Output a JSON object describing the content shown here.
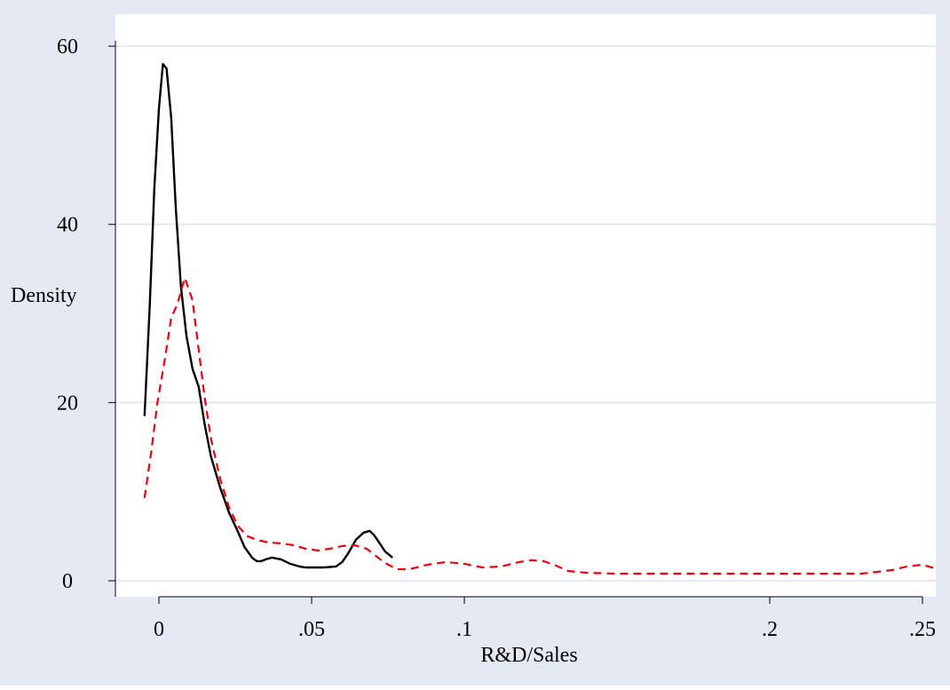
{
  "chart_data": {
    "type": "line",
    "title": "",
    "xlabel": "R&D/Sales",
    "ylabel": "Density",
    "xlim": [
      -0.005,
      0.255
    ],
    "ylim": [
      0,
      60
    ],
    "x_ticks": [
      {
        "value": 0,
        "label": "0"
      },
      {
        "value": 0.05,
        "label": ".05"
      },
      {
        "value": 0.1,
        "label": ".1"
      },
      {
        "value": 0.2,
        "label": ".2"
      },
      {
        "value": 0.25,
        "label": ".25"
      }
    ],
    "y_ticks": [
      {
        "value": 0,
        "label": "0"
      },
      {
        "value": 20,
        "label": "20"
      },
      {
        "value": 40,
        "label": "40"
      },
      {
        "value": 60,
        "label": "60"
      }
    ],
    "grid": true,
    "colors": {
      "background": "#e5e9f3",
      "plot_area": "#ffffff",
      "grid": "#dde3ef",
      "series_solid": "#000000",
      "series_dashed": "#e8000f"
    },
    "series": [
      {
        "style": "solid",
        "x": [
          -0.0047,
          -0.003,
          -0.0015,
          0,
          0.0013,
          0.0025,
          0.004,
          0.0055,
          0.0072,
          0.009,
          0.011,
          0.013,
          0.015,
          0.017,
          0.02,
          0.023,
          0.0255,
          0.028,
          0.0305,
          0.032,
          0.0335,
          0.035,
          0.037,
          0.04,
          0.043,
          0.046,
          0.048,
          0.05,
          0.054,
          0.058,
          0.06,
          0.062,
          0.0645,
          0.067,
          0.069,
          0.0705,
          0.0725,
          0.074,
          0.0765
        ],
        "y": [
          18.5,
          31,
          44,
          53,
          58,
          57.5,
          52,
          42,
          33,
          27.5,
          23.8,
          21.8,
          17.5,
          14,
          10.5,
          7.6,
          5.8,
          3.8,
          2.6,
          2.2,
          2.2,
          2.4,
          2.6,
          2.4,
          1.9,
          1.6,
          1.5,
          1.5,
          1.5,
          1.6,
          2.1,
          3.1,
          4.6,
          5.4,
          5.6,
          5.1,
          4.1,
          3.3,
          2.6
        ]
      },
      {
        "style": "dashed",
        "x": [
          -0.0047,
          -0.0025,
          -0.0005,
          0.002,
          0.004,
          0.006,
          0.0085,
          0.011,
          0.013,
          0.015,
          0.017,
          0.02,
          0.023,
          0.026,
          0.029,
          0.032,
          0.036,
          0.04,
          0.044,
          0.048,
          0.052,
          0.056,
          0.06,
          0.064,
          0.068,
          0.071,
          0.074,
          0.078,
          0.082,
          0.088,
          0.094,
          0.1,
          0.106,
          0.112,
          0.118,
          0.122,
          0.126,
          0.13,
          0.134,
          0.14,
          0.15,
          0.16,
          0.17,
          0.18,
          0.19,
          0.2,
          0.21,
          0.22,
          0.23,
          0.24,
          0.245,
          0.25,
          0.254
        ],
        "y": [
          9.3,
          14.5,
          20,
          25,
          29.5,
          31,
          34,
          31.5,
          26,
          20.5,
          16,
          11.5,
          8.2,
          6.1,
          5,
          4.6,
          4.3,
          4.2,
          4,
          3.6,
          3.4,
          3.6,
          3.9,
          4,
          3.6,
          2.8,
          2,
          1.3,
          1.3,
          1.8,
          2.1,
          1.9,
          1.5,
          1.6,
          2.1,
          2.3,
          2.2,
          1.7,
          1.1,
          0.9,
          0.8,
          0.8,
          0.8,
          0.8,
          0.8,
          0.8,
          0.8,
          0.8,
          0.8,
          1.2,
          1.6,
          1.8,
          1.4
        ]
      }
    ]
  }
}
